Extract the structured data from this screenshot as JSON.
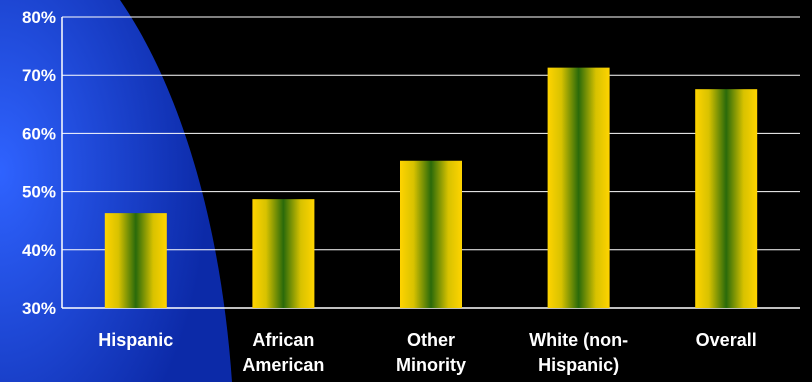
{
  "chart_data": {
    "type": "bar",
    "title": "",
    "xlabel": "",
    "ylabel": "",
    "categories": [
      [
        "Hispanic"
      ],
      [
        "African",
        "American"
      ],
      [
        "Other",
        "Minority"
      ],
      [
        "White (non-",
        "Hispanic)"
      ],
      [
        "Overall"
      ]
    ],
    "values": [
      46.3,
      48.7,
      55.3,
      71.3,
      67.6
    ],
    "ylim": [
      30,
      80
    ],
    "yticks": [
      "30%",
      "40%",
      "50%",
      "60%",
      "70%",
      "80%"
    ],
    "grid": true,
    "legend": "none"
  },
  "colors": {
    "background": "#000000",
    "backdrop_shape": "#1a3cc8",
    "bar_outer": "#ffd400",
    "bar_mid": "#c8b400",
    "bar_center": "#2a6a0a",
    "gridline": "#ffffff",
    "text": "#ffffff"
  }
}
